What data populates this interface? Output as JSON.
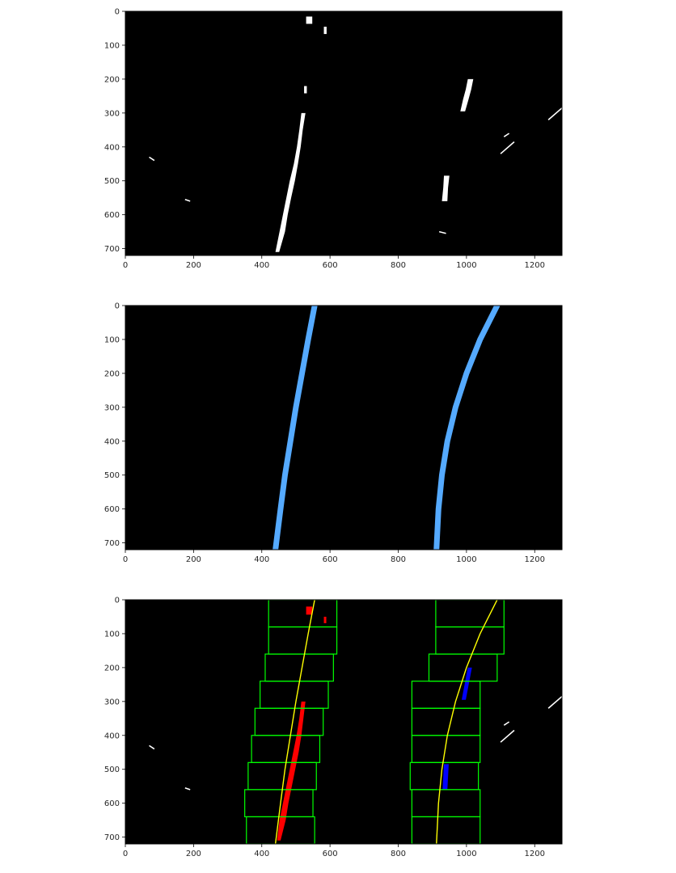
{
  "chart_data": [
    {
      "type": "image",
      "panel": "binary-threshold",
      "xlim": [
        0,
        1280
      ],
      "ylim": [
        720,
        0
      ],
      "xticks": [
        0,
        200,
        400,
        600,
        800,
        1000,
        1200
      ],
      "yticks": [
        0,
        100,
        200,
        300,
        400,
        500,
        600,
        700
      ],
      "xtick_labels": [
        "0",
        "200",
        "400",
        "600",
        "800",
        "1000",
        "1200"
      ],
      "ytick_labels": [
        "0",
        "100",
        "200",
        "300",
        "400",
        "500",
        "600",
        "700"
      ],
      "background": "#000000",
      "pixel_color": "#ffffff",
      "blobs": [
        {
          "x": [
            [
              440,
              451
            ],
            [
              452,
              468
            ],
            [
              462,
              476
            ],
            [
              472,
              486
            ],
            [
              482,
              497
            ],
            [
              494,
              506
            ],
            [
              503,
              514
            ],
            [
              510,
              520
            ],
            [
              516,
              528
            ]
          ],
          "y": [
            710,
            650,
            600,
            550,
            500,
            450,
            400,
            350,
            300
          ]
        },
        {
          "x": [
            [
              524,
              532
            ]
          ],
          "y": [
            230
          ]
        },
        {
          "x": [
            [
              530,
              548
            ]
          ],
          "y": [
            25
          ]
        },
        {
          "x": [
            [
              582,
              590
            ]
          ],
          "y": [
            55
          ]
        },
        {
          "x": [
            [
              1004,
              1020
            ],
            [
              998,
              1014
            ],
            [
              990,
              1006
            ],
            [
              982,
              996
            ]
          ],
          "y": [
            200,
            230,
            260,
            295
          ]
        },
        {
          "x": [
            [
              934,
              950
            ],
            [
              932,
              946
            ],
            [
              928,
              944
            ]
          ],
          "y": [
            485,
            520,
            560
          ]
        },
        {
          "lines": [
            [
              [
                70,
                430
              ],
              [
                85,
                440
              ]
            ],
            [
              [
                175,
                555
              ],
              [
                190,
                560
              ]
            ],
            [
              [
                1100,
                420
              ],
              [
                1140,
                385
              ]
            ],
            [
              [
                1110,
                370
              ],
              [
                1125,
                360
              ]
            ],
            [
              [
                1240,
                320
              ],
              [
                1280,
                285
              ]
            ],
            [
              [
                920,
                650
              ],
              [
                940,
                655
              ]
            ]
          ]
        }
      ]
    },
    {
      "type": "line",
      "panel": "fitted-lane-lines",
      "xlim": [
        0,
        1280
      ],
      "ylim": [
        720,
        0
      ],
      "xticks": [
        0,
        200,
        400,
        600,
        800,
        1000,
        1200
      ],
      "yticks": [
        0,
        100,
        200,
        300,
        400,
        500,
        600,
        700
      ],
      "xtick_labels": [
        "0",
        "200",
        "400",
        "600",
        "800",
        "1000",
        "1200"
      ],
      "ytick_labels": [
        "0",
        "100",
        "200",
        "300",
        "400",
        "500",
        "600",
        "700"
      ],
      "background": "#000000",
      "line_color": "#55aaff",
      "series": [
        {
          "y": [
            0,
            100,
            200,
            300,
            400,
            500,
            600,
            720
          ],
          "x": [
            555,
            536,
            518,
            500,
            484,
            468,
            455,
            440
          ]
        },
        {
          "y": [
            0,
            100,
            200,
            300,
            400,
            500,
            600,
            720
          ],
          "x": [
            1090,
            1040,
            1000,
            968,
            944,
            928,
            918,
            912
          ]
        }
      ]
    },
    {
      "type": "line",
      "panel": "sliding-windows",
      "xlim": [
        0,
        1280
      ],
      "ylim": [
        720,
        0
      ],
      "xticks": [
        0,
        200,
        400,
        600,
        800,
        1000,
        1200
      ],
      "yticks": [
        0,
        100,
        200,
        300,
        400,
        500,
        600,
        700
      ],
      "xtick_labels": [
        "0",
        "200",
        "400",
        "600",
        "800",
        "1000",
        "1200"
      ],
      "ytick_labels": [
        "0",
        "100",
        "200",
        "300",
        "400",
        "500",
        "600",
        "700"
      ],
      "background": "#000000",
      "window_color": "#00ff00",
      "fit_color": "#ffff00",
      "left_pixel_color": "#ff0000",
      "right_pixel_color": "#0000ff",
      "windows": [
        {
          "x": [
            355,
            555
          ],
          "y": [
            640,
            720
          ]
        },
        {
          "x": [
            350,
            550
          ],
          "y": [
            560,
            640
          ]
        },
        {
          "x": [
            360,
            560
          ],
          "y": [
            480,
            560
          ]
        },
        {
          "x": [
            370,
            570
          ],
          "y": [
            400,
            480
          ]
        },
        {
          "x": [
            380,
            580
          ],
          "y": [
            320,
            400
          ]
        },
        {
          "x": [
            395,
            595
          ],
          "y": [
            240,
            320
          ]
        },
        {
          "x": [
            410,
            610
          ],
          "y": [
            160,
            240
          ]
        },
        {
          "x": [
            420,
            620
          ],
          "y": [
            80,
            160
          ]
        },
        {
          "x": [
            420,
            620
          ],
          "y": [
            0,
            80
          ]
        },
        {
          "x": [
            840,
            1040
          ],
          "y": [
            640,
            720
          ]
        },
        {
          "x": [
            840,
            1040
          ],
          "y": [
            560,
            640
          ]
        },
        {
          "x": [
            835,
            1035
          ],
          "y": [
            480,
            560
          ]
        },
        {
          "x": [
            840,
            1040
          ],
          "y": [
            400,
            480
          ]
        },
        {
          "x": [
            840,
            1040
          ],
          "y": [
            320,
            400
          ]
        },
        {
          "x": [
            840,
            1040
          ],
          "y": [
            240,
            320
          ]
        },
        {
          "x": [
            890,
            1090
          ],
          "y": [
            160,
            240
          ]
        },
        {
          "x": [
            910,
            1110
          ],
          "y": [
            80,
            160
          ]
        },
        {
          "x": [
            910,
            1110
          ],
          "y": [
            0,
            80
          ]
        }
      ],
      "series": [
        {
          "y": [
            0,
            100,
            200,
            300,
            400,
            500,
            600,
            720
          ],
          "x": [
            555,
            536,
            518,
            500,
            484,
            468,
            455,
            440
          ]
        },
        {
          "y": [
            0,
            100,
            200,
            300,
            400,
            500,
            600,
            720
          ],
          "x": [
            1090,
            1040,
            1000,
            968,
            944,
            928,
            918,
            912
          ]
        }
      ],
      "white_marks": [
        [
          [
            70,
            430
          ],
          [
            85,
            440
          ]
        ],
        [
          [
            175,
            555
          ],
          [
            190,
            560
          ]
        ],
        [
          [
            1100,
            420
          ],
          [
            1140,
            385
          ]
        ],
        [
          [
            1110,
            370
          ],
          [
            1125,
            360
          ]
        ],
        [
          [
            1240,
            320
          ],
          [
            1280,
            285
          ]
        ]
      ]
    }
  ]
}
